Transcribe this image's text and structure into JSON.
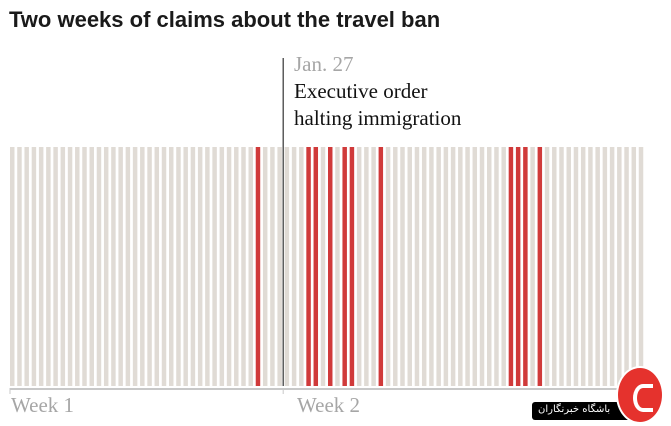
{
  "title": "Two weeks of claims about the travel ban",
  "annotation": {
    "date": "Jan. 27",
    "line1": "Executive order",
    "line2": "halting immigration"
  },
  "weeks": [
    "Week 1",
    "Week 2"
  ],
  "watermark": "باشگاه خبرنگاران",
  "colors": {
    "bar_gray": "#e0dbd5",
    "bar_red": "#d03a3a",
    "baseline": "#c8c8c8",
    "marker": "#333333"
  },
  "chart_data": {
    "type": "bar",
    "title": "Two weeks of claims about the travel ban",
    "xlabel": "",
    "ylabel": "",
    "bars": [
      "gray",
      "gray",
      "gray",
      "gray",
      "gray",
      "gray",
      "gray",
      "gray",
      "gray",
      "gray",
      "gray",
      "gray",
      "gray",
      "gray",
      "gray",
      "gray",
      "gray",
      "gray",
      "gray",
      "gray",
      "gray",
      "gray",
      "gray",
      "gray",
      "gray",
      "gray",
      "gray",
      "gray",
      "gray",
      "gray",
      "gray",
      "gray",
      "gray",
      "gray",
      "red",
      "gray",
      "gray",
      "gray",
      "gray",
      "gray",
      "gray",
      "red",
      "red",
      "gray",
      "red",
      "gray",
      "red",
      "red",
      "gray",
      "gray",
      "gray",
      "red",
      "gray",
      "gray",
      "gray",
      "gray",
      "gray",
      "gray",
      "gray",
      "gray",
      "gray",
      "gray",
      "gray",
      "gray",
      "gray",
      "gray",
      "gray",
      "gray",
      "gray",
      "red",
      "red",
      "red",
      "gray",
      "red",
      "gray",
      "gray",
      "gray",
      "gray",
      "gray",
      "gray",
      "gray",
      "gray",
      "gray",
      "gray",
      "gray",
      "gray",
      "gray",
      "gray"
    ],
    "annotation_after_bar": 37,
    "week_labels": [
      "Week 1",
      "Week 2"
    ]
  }
}
